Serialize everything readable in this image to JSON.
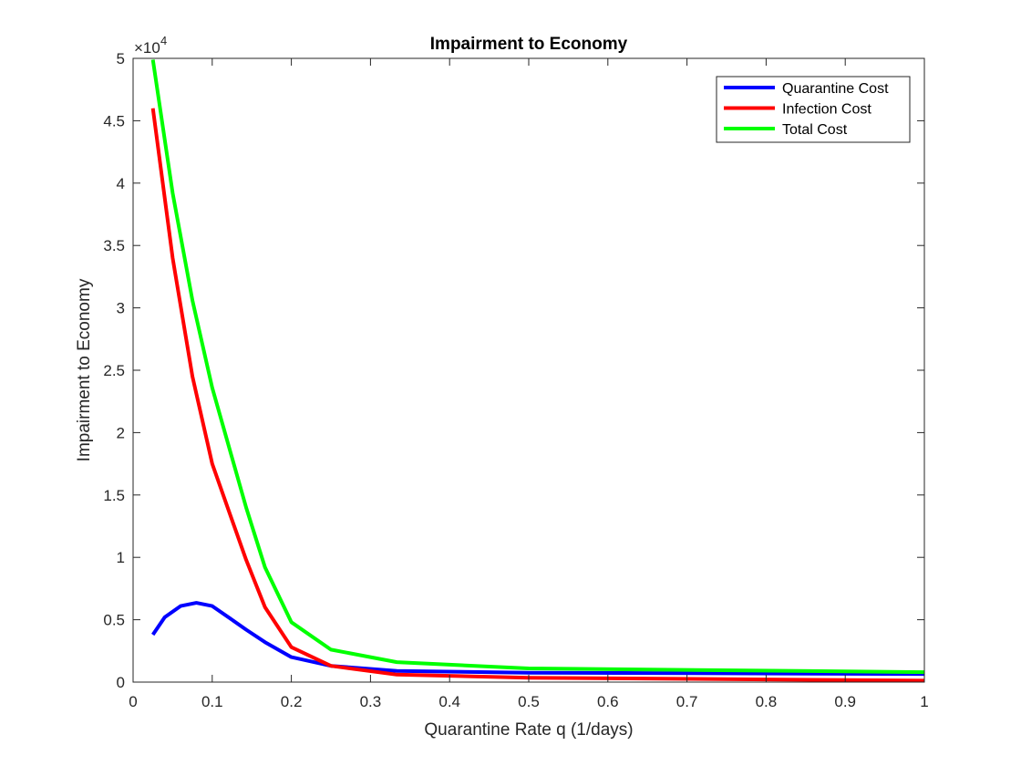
{
  "chart_data": {
    "type": "line",
    "title": "Impairment to Economy",
    "xlabel": "Quarantine Rate q (1/days)",
    "ylabel": "Impairment to Economy",
    "exponent_label": "×10",
    "exponent_power": "4",
    "xlim": [
      0,
      1
    ],
    "ylim": [
      0,
      5
    ],
    "grid": false,
    "legend_position": "top-right",
    "x_ticks": [
      "0",
      "0.1",
      "0.2",
      "0.3",
      "0.4",
      "0.5",
      "0.6",
      "0.7",
      "0.8",
      "0.9",
      "1"
    ],
    "y_ticks": [
      "0",
      "0.5",
      "1",
      "1.5",
      "2",
      "2.5",
      "3",
      "3.5",
      "4",
      "4.5",
      "5"
    ],
    "x_tick_values": [
      0,
      0.1,
      0.2,
      0.3,
      0.4,
      0.5,
      0.6,
      0.7,
      0.8,
      0.9,
      1
    ],
    "y_tick_values": [
      0,
      0.5,
      1,
      1.5,
      2,
      2.5,
      3,
      3.5,
      4,
      4.5,
      5
    ],
    "series": [
      {
        "name": "Quarantine Cost",
        "color": "#0000ff",
        "x": [
          0.025,
          0.04,
          0.06,
          0.08,
          0.1,
          0.125,
          0.1429,
          0.1667,
          0.2,
          0.25,
          0.3333,
          0.5,
          1.0
        ],
        "y": [
          0.38,
          0.52,
          0.61,
          0.635,
          0.61,
          0.5,
          0.42,
          0.32,
          0.2,
          0.13,
          0.09,
          0.075,
          0.065
        ]
      },
      {
        "name": "Infection Cost",
        "color": "#ff0000",
        "x": [
          0.025,
          0.05,
          0.075,
          0.1,
          0.125,
          0.1429,
          0.1667,
          0.2,
          0.25,
          0.3333,
          0.5,
          1.0
        ],
        "y": [
          4.6,
          3.4,
          2.45,
          1.75,
          1.3,
          0.98,
          0.6,
          0.28,
          0.13,
          0.06,
          0.035,
          0.012
        ]
      },
      {
        "name": "Total Cost",
        "color": "#00ff00",
        "x": [
          0.025,
          0.05,
          0.075,
          0.1,
          0.125,
          0.1429,
          0.1667,
          0.2,
          0.25,
          0.3333,
          0.5,
          1.0
        ],
        "y": [
          4.99,
          3.92,
          3.06,
          2.36,
          1.8,
          1.4,
          0.92,
          0.48,
          0.26,
          0.16,
          0.11,
          0.08
        ]
      }
    ]
  }
}
